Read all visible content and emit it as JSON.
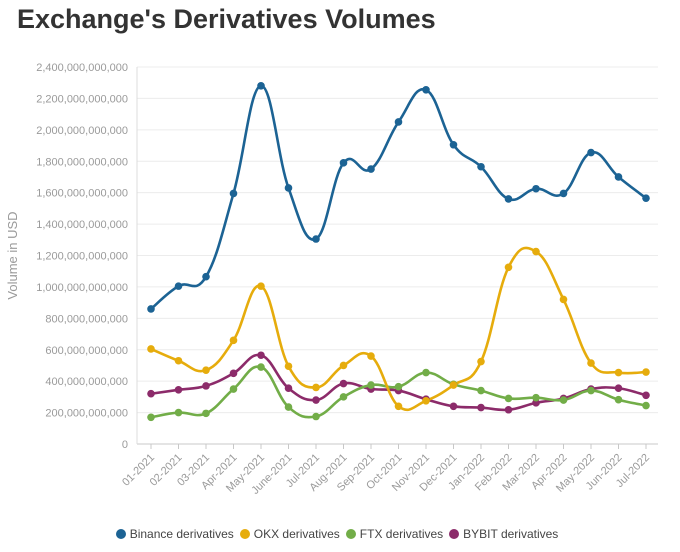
{
  "chart_data": {
    "type": "line",
    "title": "Exchange's Derivatives Volumes",
    "xlabel": "",
    "ylabel": "Volume in USD",
    "ylim": [
      0,
      2400000000000
    ],
    "yticks": [
      0,
      200000000000,
      400000000000,
      600000000000,
      800000000000,
      1000000000000,
      1200000000000,
      1400000000000,
      1600000000000,
      1800000000000,
      2000000000000,
      2200000000000,
      2400000000000
    ],
    "ytick_labels": [
      "0",
      "200,000,000,000",
      "400,000,000,000",
      "600,000,000,000",
      "800,000,000,000",
      "1,000,000,000,000",
      "1,200,000,000,000",
      "1,400,000,000,000",
      "1,600,000,000,000",
      "1,800,000,000,000",
      "2,000,000,000,000",
      "2,200,000,000,000",
      "2,400,000,000,000"
    ],
    "categories": [
      "01-2021",
      "02-2021",
      "03-2021",
      "Apr-2021",
      "May-2021",
      "June-2021",
      "Jul-2021",
      "Aug-2021",
      "Sep-2021",
      "Oct-2021",
      "Nov-2021",
      "Dec-2021",
      "Jan-2022",
      "Feb-2022",
      "Mar-2022",
      "Apr-2022",
      "May-2022",
      "Jun-2022",
      "Jul-2022"
    ],
    "legend_position": "bottom",
    "grid": true,
    "series": [
      {
        "name": "Binance derivatives",
        "color": "#1c6394",
        "values": [
          860000000000,
          1005000000000,
          1065000000000,
          1595000000000,
          2280000000000,
          1630000000000,
          1305000000000,
          1790000000000,
          1750000000000,
          2050000000000,
          2255000000000,
          1905000000000,
          1765000000000,
          1560000000000,
          1625000000000,
          1595000000000,
          1855000000000,
          1700000000000,
          1565000000000
        ]
      },
      {
        "name": "OKX derivatives",
        "color": "#e6ac0c",
        "values": [
          605000000000,
          530000000000,
          470000000000,
          660000000000,
          1005000000000,
          495000000000,
          360000000000,
          500000000000,
          560000000000,
          240000000000,
          275000000000,
          375000000000,
          525000000000,
          1125000000000,
          1225000000000,
          920000000000,
          515000000000,
          455000000000,
          458000000000
        ]
      },
      {
        "name": "FTX derivatives",
        "color": "#72ad48",
        "values": [
          170000000000,
          200000000000,
          195000000000,
          350000000000,
          490000000000,
          235000000000,
          175000000000,
          300000000000,
          375000000000,
          365000000000,
          455000000000,
          380000000000,
          340000000000,
          290000000000,
          295000000000,
          280000000000,
          340000000000,
          282000000000,
          245000000000
        ]
      },
      {
        "name": "BYBIT derivatives",
        "color": "#8c2b6a",
        "values": [
          320000000000,
          345000000000,
          370000000000,
          450000000000,
          565000000000,
          355000000000,
          280000000000,
          385000000000,
          350000000000,
          340000000000,
          285000000000,
          240000000000,
          232000000000,
          218000000000,
          262000000000,
          290000000000,
          350000000000,
          355000000000,
          310000000000
        ]
      }
    ]
  }
}
